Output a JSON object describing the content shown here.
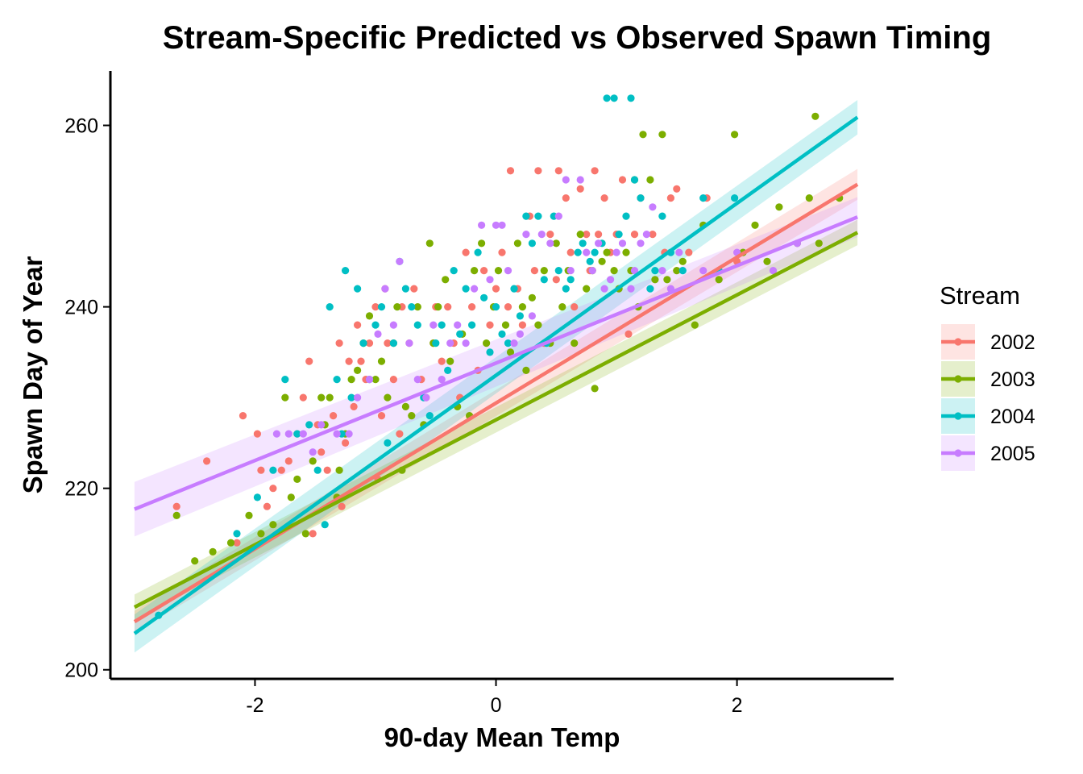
{
  "chart_data": {
    "type": "scatter",
    "title": "Stream-Specific Predicted vs Observed Spawn Timing",
    "xlabel": "90-day Mean Temp",
    "ylabel": "Spawn Day of Year",
    "xlim": [
      -3.2,
      3.3
    ],
    "ylim": [
      199,
      266
    ],
    "x_ticks": [
      -2,
      0,
      2
    ],
    "x_tick_labels": [
      "-2",
      "0",
      "2"
    ],
    "y_ticks": [
      200,
      220,
      240,
      260
    ],
    "y_tick_labels": [
      "200",
      "220",
      "240",
      "260"
    ],
    "grid": false,
    "legend": {
      "title": "Stream",
      "placement": "right"
    },
    "series": [
      {
        "name": "2002",
        "color": "#F8766D",
        "fit": {
          "x": [
            -3.0,
            3.0
          ],
          "y": [
            205.3,
            253.5
          ],
          "se": [
            1.2,
            1.7
          ]
        },
        "points": [
          [
            -2.65,
            218
          ],
          [
            -2.4,
            223
          ],
          [
            -2.15,
            214
          ],
          [
            -2.1,
            228
          ],
          [
            -1.98,
            226
          ],
          [
            -1.95,
            222
          ],
          [
            -1.9,
            218
          ],
          [
            -1.85,
            220
          ],
          [
            -1.78,
            222
          ],
          [
            -1.72,
            223
          ],
          [
            -1.65,
            226
          ],
          [
            -1.6,
            230
          ],
          [
            -1.55,
            234
          ],
          [
            -1.52,
            215
          ],
          [
            -1.48,
            227
          ],
          [
            -1.45,
            224
          ],
          [
            -1.4,
            222
          ],
          [
            -1.35,
            228
          ],
          [
            -1.3,
            236
          ],
          [
            -1.28,
            218
          ],
          [
            -1.25,
            225
          ],
          [
            -1.22,
            234
          ],
          [
            -1.18,
            229
          ],
          [
            -1.15,
            238
          ],
          [
            -1.12,
            234
          ],
          [
            -1.08,
            232
          ],
          [
            -1.05,
            236
          ],
          [
            -1.0,
            240
          ],
          [
            -0.98,
            221
          ],
          [
            -0.95,
            228
          ],
          [
            -0.92,
            242
          ],
          [
            -0.9,
            236
          ],
          [
            -0.85,
            232
          ],
          [
            -0.8,
            226
          ],
          [
            -0.78,
            240
          ],
          [
            -0.72,
            236
          ],
          [
            -0.68,
            242
          ],
          [
            -0.62,
            232
          ],
          [
            -0.58,
            230
          ],
          [
            -0.52,
            236
          ],
          [
            -0.5,
            240
          ],
          [
            -0.45,
            234
          ],
          [
            -0.4,
            240
          ],
          [
            -0.35,
            236
          ],
          [
            -0.3,
            230
          ],
          [
            -0.25,
            246
          ],
          [
            -0.2,
            240
          ],
          [
            -0.15,
            233
          ],
          [
            -0.1,
            244
          ],
          [
            -0.05,
            238
          ],
          [
            0.0,
            242
          ],
          [
            0.05,
            246
          ],
          [
            0.1,
            240
          ],
          [
            0.12,
            255
          ],
          [
            0.18,
            242
          ],
          [
            0.22,
            238
          ],
          [
            0.28,
            250
          ],
          [
            0.32,
            244
          ],
          [
            0.35,
            255
          ],
          [
            0.4,
            236
          ],
          [
            0.45,
            248
          ],
          [
            0.5,
            243
          ],
          [
            0.52,
            255
          ],
          [
            0.58,
            252
          ],
          [
            0.62,
            246
          ],
          [
            0.65,
            240
          ],
          [
            0.7,
            253
          ],
          [
            0.75,
            248
          ],
          [
            0.78,
            244
          ],
          [
            0.82,
            255
          ],
          [
            0.85,
            248
          ],
          [
            0.9,
            252
          ],
          [
            0.95,
            246
          ],
          [
            1.0,
            248
          ],
          [
            1.05,
            254
          ],
          [
            1.1,
            237
          ],
          [
            1.15,
            248
          ],
          [
            1.2,
            252
          ],
          [
            1.3,
            248
          ],
          [
            1.4,
            246
          ],
          [
            1.45,
            252
          ],
          [
            1.5,
            253
          ],
          [
            1.6,
            246
          ],
          [
            1.75,
            252
          ],
          [
            2.0,
            245
          ]
        ]
      },
      {
        "name": "2003",
        "color": "#7CAE00",
        "fit": {
          "x": [
            -3.0,
            3.0
          ],
          "y": [
            206.9,
            248.2
          ],
          "se": [
            1.4,
            1.4
          ]
        },
        "points": [
          [
            -2.65,
            217
          ],
          [
            -2.5,
            212
          ],
          [
            -2.35,
            213
          ],
          [
            -2.2,
            214
          ],
          [
            -2.05,
            217
          ],
          [
            -1.95,
            215
          ],
          [
            -1.85,
            216
          ],
          [
            -1.75,
            230
          ],
          [
            -1.7,
            219
          ],
          [
            -1.65,
            221
          ],
          [
            -1.58,
            215
          ],
          [
            -1.52,
            223
          ],
          [
            -1.45,
            230
          ],
          [
            -1.42,
            227
          ],
          [
            -1.38,
            230
          ],
          [
            -1.32,
            219
          ],
          [
            -1.3,
            222
          ],
          [
            -1.25,
            226
          ],
          [
            -1.2,
            232
          ],
          [
            -1.15,
            233
          ],
          [
            -1.1,
            236
          ],
          [
            -1.05,
            239
          ],
          [
            -1.0,
            232
          ],
          [
            -0.95,
            234
          ],
          [
            -0.9,
            230
          ],
          [
            -0.85,
            236
          ],
          [
            -0.82,
            240
          ],
          [
            -0.78,
            222
          ],
          [
            -0.75,
            229
          ],
          [
            -0.7,
            228
          ],
          [
            -0.65,
            240
          ],
          [
            -0.6,
            227
          ],
          [
            -0.55,
            247
          ],
          [
            -0.52,
            236
          ],
          [
            -0.48,
            240
          ],
          [
            -0.42,
            243
          ],
          [
            -0.38,
            234
          ],
          [
            -0.32,
            229
          ],
          [
            -0.28,
            237
          ],
          [
            -0.22,
            228
          ],
          [
            -0.18,
            244
          ],
          [
            -0.12,
            247
          ],
          [
            -0.08,
            236
          ],
          [
            -0.02,
            240
          ],
          [
            0.02,
            244
          ],
          [
            0.08,
            238
          ],
          [
            0.12,
            235
          ],
          [
            0.18,
            247
          ],
          [
            0.22,
            240
          ],
          [
            0.25,
            233
          ],
          [
            0.3,
            241
          ],
          [
            0.35,
            238
          ],
          [
            0.4,
            244
          ],
          [
            0.45,
            236
          ],
          [
            0.5,
            247
          ],
          [
            0.55,
            240
          ],
          [
            0.6,
            244
          ],
          [
            0.65,
            236
          ],
          [
            0.7,
            248
          ],
          [
            0.75,
            242
          ],
          [
            0.8,
            244
          ],
          [
            0.82,
            231
          ],
          [
            0.88,
            245
          ],
          [
            0.92,
            246
          ],
          [
            0.98,
            244
          ],
          [
            1.02,
            242
          ],
          [
            1.08,
            246
          ],
          [
            1.12,
            244
          ],
          [
            1.15,
            254
          ],
          [
            1.18,
            240
          ],
          [
            1.22,
            259
          ],
          [
            1.28,
            254
          ],
          [
            1.32,
            243
          ],
          [
            1.38,
            259
          ],
          [
            1.42,
            243
          ],
          [
            1.5,
            244
          ],
          [
            1.55,
            245
          ],
          [
            1.65,
            238
          ],
          [
            1.72,
            249
          ],
          [
            1.85,
            243
          ],
          [
            1.98,
            259
          ],
          [
            2.05,
            246
          ],
          [
            2.15,
            249
          ],
          [
            2.25,
            245
          ],
          [
            2.35,
            251
          ],
          [
            2.5,
            247
          ],
          [
            2.6,
            252
          ],
          [
            2.65,
            261
          ],
          [
            2.68,
            247
          ],
          [
            2.85,
            252
          ]
        ]
      },
      {
        "name": "2004",
        "color": "#00BFC4",
        "fit": {
          "x": [
            -3.0,
            3.0
          ],
          "y": [
            204.0,
            260.9
          ],
          "se": [
            2.1,
            1.9
          ]
        },
        "points": [
          [
            -2.8,
            206
          ],
          [
            -2.15,
            215
          ],
          [
            -1.98,
            219
          ],
          [
            -1.85,
            222
          ],
          [
            -1.75,
            232
          ],
          [
            -1.65,
            226
          ],
          [
            -1.55,
            227
          ],
          [
            -1.48,
            222
          ],
          [
            -1.42,
            216
          ],
          [
            -1.38,
            240
          ],
          [
            -1.32,
            232
          ],
          [
            -1.28,
            226
          ],
          [
            -1.25,
            244
          ],
          [
            -1.2,
            230
          ],
          [
            -1.15,
            242
          ],
          [
            -1.1,
            236
          ],
          [
            -1.05,
            232
          ],
          [
            -1.0,
            238
          ],
          [
            -0.95,
            240
          ],
          [
            -0.9,
            225
          ],
          [
            -0.85,
            236
          ],
          [
            -0.8,
            245
          ],
          [
            -0.75,
            242
          ],
          [
            -0.7,
            240
          ],
          [
            -0.65,
            238
          ],
          [
            -0.6,
            230
          ],
          [
            -0.55,
            228
          ],
          [
            -0.5,
            236
          ],
          [
            -0.45,
            238
          ],
          [
            -0.4,
            233
          ],
          [
            -0.35,
            244
          ],
          [
            -0.3,
            237
          ],
          [
            -0.25,
            242
          ],
          [
            -0.2,
            238
          ],
          [
            -0.15,
            246
          ],
          [
            -0.1,
            241
          ],
          [
            -0.05,
            235
          ],
          [
            0.0,
            240
          ],
          [
            0.05,
            237
          ],
          [
            0.1,
            236
          ],
          [
            0.15,
            242
          ],
          [
            0.2,
            239
          ],
          [
            0.25,
            250
          ],
          [
            0.3,
            247
          ],
          [
            0.35,
            250
          ],
          [
            0.4,
            243
          ],
          [
            0.42,
            236
          ],
          [
            0.48,
            250
          ],
          [
            0.52,
            244
          ],
          [
            0.58,
            242
          ],
          [
            0.62,
            243
          ],
          [
            0.68,
            246
          ],
          [
            0.72,
            247
          ],
          [
            0.78,
            245
          ],
          [
            0.82,
            246
          ],
          [
            0.88,
            247
          ],
          [
            0.92,
            263
          ],
          [
            0.98,
            263
          ],
          [
            1.02,
            248
          ],
          [
            1.08,
            250
          ],
          [
            1.12,
            263
          ],
          [
            1.15,
            254
          ],
          [
            1.2,
            252
          ],
          [
            1.28,
            242
          ],
          [
            1.32,
            244
          ],
          [
            1.38,
            250
          ],
          [
            1.45,
            246
          ],
          [
            1.55,
            244
          ],
          [
            1.72,
            252
          ],
          [
            1.85,
            244
          ],
          [
            1.98,
            252
          ]
        ]
      },
      {
        "name": "2005",
        "color": "#C77CFF",
        "fit": {
          "x": [
            -3.0,
            3.0
          ],
          "y": [
            217.7,
            249.9
          ],
          "se": [
            3.0,
            2.2
          ]
        },
        "points": [
          [
            -1.82,
            226
          ],
          [
            -1.72,
            226
          ],
          [
            -1.6,
            226
          ],
          [
            -1.52,
            224
          ],
          [
            -1.45,
            227
          ],
          [
            -1.32,
            226
          ],
          [
            -1.22,
            226
          ],
          [
            -1.15,
            230
          ],
          [
            -1.05,
            232
          ],
          [
            -0.98,
            237
          ],
          [
            -0.92,
            242
          ],
          [
            -0.85,
            238
          ],
          [
            -0.8,
            245
          ],
          [
            -0.72,
            236
          ],
          [
            -0.65,
            232
          ],
          [
            -0.58,
            230
          ],
          [
            -0.52,
            238
          ],
          [
            -0.45,
            232
          ],
          [
            -0.38,
            236
          ],
          [
            -0.32,
            238
          ],
          [
            -0.25,
            236
          ],
          [
            -0.18,
            242
          ],
          [
            -0.12,
            249
          ],
          [
            -0.05,
            243
          ],
          [
            0.0,
            249
          ],
          [
            0.05,
            249
          ],
          [
            0.1,
            244
          ],
          [
            0.15,
            236
          ],
          [
            0.2,
            237
          ],
          [
            0.25,
            248
          ],
          [
            0.3,
            239
          ],
          [
            0.38,
            248
          ],
          [
            0.45,
            247
          ],
          [
            0.52,
            250
          ],
          [
            0.58,
            254
          ],
          [
            0.62,
            244
          ],
          [
            0.7,
            254
          ],
          [
            0.75,
            246
          ],
          [
            0.8,
            244
          ],
          [
            0.85,
            247
          ],
          [
            0.9,
            242
          ],
          [
            0.95,
            243
          ],
          [
            1.0,
            246
          ],
          [
            1.05,
            247
          ],
          [
            1.12,
            242
          ],
          [
            1.15,
            244
          ],
          [
            1.2,
            247
          ],
          [
            1.25,
            248
          ],
          [
            1.3,
            251
          ],
          [
            1.38,
            244
          ],
          [
            1.45,
            242
          ],
          [
            1.52,
            246
          ],
          [
            1.72,
            244
          ],
          [
            2.0,
            246
          ],
          [
            2.3,
            244
          ],
          [
            2.5,
            247
          ]
        ]
      }
    ]
  }
}
